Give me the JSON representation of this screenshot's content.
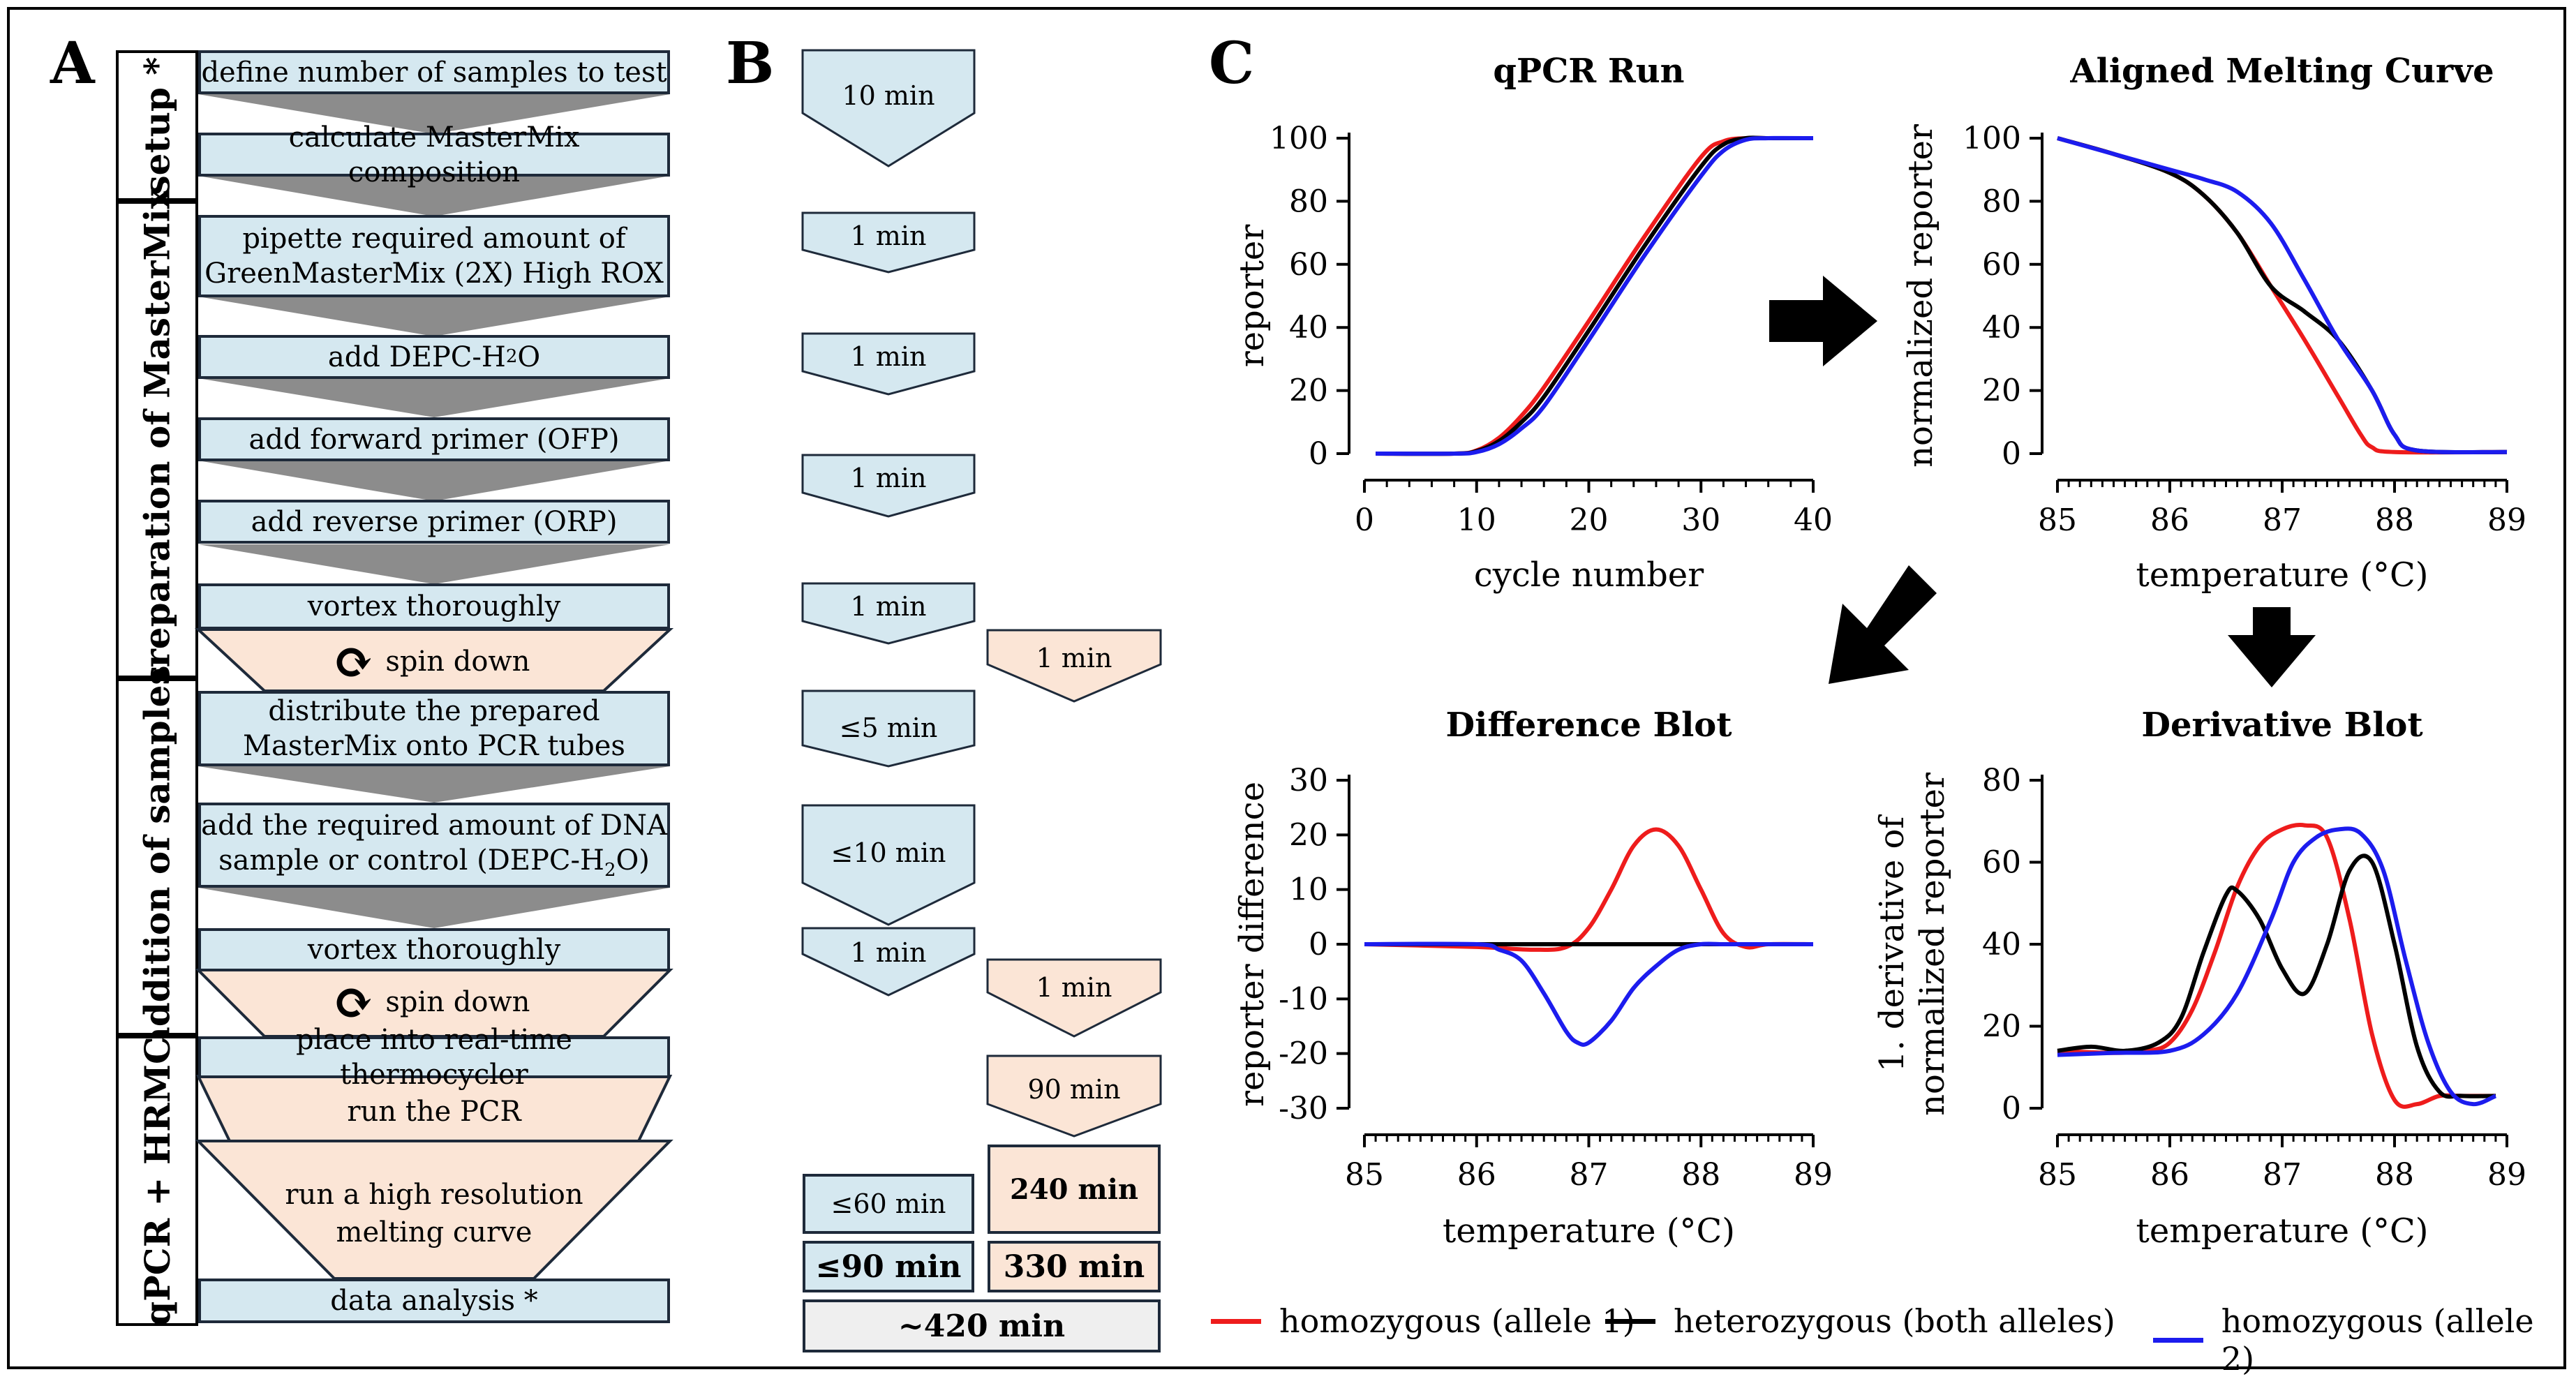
{
  "panels": {
    "a": "A",
    "b": "B",
    "c": "C"
  },
  "phases": [
    {
      "label": "setup *"
    },
    {
      "label": "preparation of MasterMix"
    },
    {
      "label": "addition of samples"
    },
    {
      "label": "qPCR + HRMC"
    }
  ],
  "steps": {
    "s1": "define number of samples to test",
    "s2": "calculate MasterMix composition",
    "s3a": "pipette required amount of",
    "s3b": "GreenMasterMix (2X) High ROX",
    "s4a": "add DEPC-H",
    "s4sub": "2",
    "s4b": "O",
    "s5": "add forward primer (OFP)",
    "s6": "add reverse primer (ORP)",
    "s7": "vortex thoroughly",
    "s8": "spin down",
    "s9a": "distribute the prepared",
    "s9b": "MasterMix onto PCR tubes",
    "s10a": "add the required amount of DNA",
    "s10b1": "sample or control (DEPC-H",
    "s10sub": "2",
    "s10b2": "O)",
    "s11": "vortex thoroughly",
    "s12": "spin down",
    "s13": "place into real-time thermocycler",
    "s14": "run the PCR",
    "s15a": "run a high resolution",
    "s15b": "melting curve",
    "s16": "data analysis *"
  },
  "times": {
    "t1": "10 min",
    "t2": "1 min",
    "t3": "1 min",
    "t4": "1 min",
    "t5": "1 min",
    "t6": "1 min",
    "t7": "≤5 min",
    "t8": "≤10 min",
    "t9": "1 min",
    "t10": "1 min",
    "t11": "90 min",
    "t12": "240 min",
    "t13": "≤60 min",
    "total_blue": "≤90 min",
    "total_orange": "330 min",
    "total_all": "~420 min"
  },
  "colors": {
    "allele1": "#ee1c1c",
    "hetero": "#000000",
    "allele2": "#1c1cee",
    "blue_box": "#d5e8f0",
    "orange_box": "#fbe5d6",
    "gray_box": "#efefef",
    "arrow": "#8c8c8c"
  },
  "legend": {
    "allele1": "homozygous (allele 1)",
    "hetero": "heterozygous (both alleles)",
    "allele2": "homozygous (allele 2)"
  },
  "chart_data": [
    {
      "type": "line",
      "title": "qPCR Run",
      "xlabel": "cycle number",
      "ylabel": "reporter",
      "xlim": [
        0,
        40
      ],
      "ylim": [
        0,
        100
      ],
      "xticks": [
        "0",
        "10",
        "20",
        "30",
        "40"
      ],
      "yticks": [
        "0",
        "20",
        "40",
        "60",
        "80",
        "100"
      ],
      "series": [
        {
          "name": "homozygous (allele 1)",
          "color": "#ee1c1c",
          "x": [
            1,
            8,
            10,
            12,
            14,
            16,
            20,
            25,
            30,
            32,
            34,
            36,
            40
          ],
          "y": [
            0,
            0,
            1,
            5,
            12,
            21,
            42,
            69,
            94,
            99,
            100,
            100,
            100
          ]
        },
        {
          "name": "heterozygous (both alleles)",
          "color": "#000000",
          "x": [
            1,
            8,
            10,
            12,
            14,
            16,
            20,
            25,
            30,
            32,
            34,
            36,
            40
          ],
          "y": [
            0,
            0,
            0.8,
            4,
            10,
            18,
            39,
            66,
            91,
            98,
            100,
            100,
            100
          ]
        },
        {
          "name": "homozygous (allele 2)",
          "color": "#1c1cee",
          "x": [
            1,
            8,
            10,
            12,
            14,
            16,
            20,
            25,
            30,
            32,
            34,
            36,
            40
          ],
          "y": [
            0,
            0,
            0.5,
            3,
            8,
            15,
            36,
            63,
            88,
            96,
            99.5,
            100,
            100
          ]
        }
      ]
    },
    {
      "type": "line",
      "title": "Aligned Melting Curve",
      "xlabel": "temperature (°C)",
      "ylabel": "normalized reporter",
      "xlim": [
        85,
        89
      ],
      "ylim": [
        0,
        100
      ],
      "xticks": [
        "85",
        "86",
        "87",
        "88",
        "89"
      ],
      "yticks": [
        "0",
        "20",
        "40",
        "60",
        "80",
        "100"
      ],
      "series": [
        {
          "name": "homozygous (allele 1)",
          "color": "#ee1c1c",
          "x": [
            85,
            85.5,
            86,
            86.3,
            86.6,
            86.9,
            87.2,
            87.5,
            87.7,
            87.8,
            88,
            89
          ],
          "y": [
            100,
            95,
            89,
            82,
            70,
            53,
            36,
            18,
            6,
            2,
            0.5,
            0.5
          ]
        },
        {
          "name": "heterozygous (both alleles)",
          "color": "#000000",
          "x": [
            85,
            85.5,
            86,
            86.3,
            86.6,
            86.9,
            87.2,
            87.5,
            87.8,
            88,
            88.2,
            89
          ],
          "y": [
            100,
            95,
            89,
            82,
            70,
            53,
            45,
            36,
            20,
            6,
            1,
            0.5
          ]
        },
        {
          "name": "homozygous (allele 2)",
          "color": "#1c1cee",
          "x": [
            85,
            85.5,
            86,
            86.3,
            86.6,
            86.9,
            87.2,
            87.5,
            87.8,
            88,
            88.2,
            89
          ],
          "y": [
            100,
            95,
            90,
            87,
            83,
            73,
            55,
            36,
            20,
            6,
            1,
            0.5
          ]
        }
      ]
    },
    {
      "type": "line",
      "title": "Difference Blot",
      "xlabel": "temperature (°C)",
      "ylabel": "reporter difference",
      "xlim": [
        85,
        89
      ],
      "ylim": [
        -30,
        30
      ],
      "xticks": [
        "85",
        "86",
        "87",
        "88",
        "89"
      ],
      "yticks": [
        "-30",
        "-20",
        "-10",
        "0",
        "10",
        "20",
        "30"
      ],
      "series": [
        {
          "name": "homozygous (allele 1)",
          "color": "#ee1c1c",
          "x": [
            85,
            86,
            86.5,
            86.8,
            87,
            87.2,
            87.4,
            87.6,
            87.8,
            88,
            88.2,
            88.4,
            88.6,
            89
          ],
          "y": [
            0,
            -0.5,
            -1,
            -0.5,
            3,
            10,
            18,
            21,
            18,
            10,
            2,
            -0.5,
            0,
            0
          ]
        },
        {
          "name": "heterozygous (both alleles)",
          "color": "#000000",
          "x": [
            85,
            89
          ],
          "y": [
            0,
            0
          ]
        },
        {
          "name": "homozygous (allele 2)",
          "color": "#1c1cee",
          "x": [
            85,
            86,
            86.2,
            86.4,
            86.6,
            86.8,
            86.9,
            87,
            87.2,
            87.4,
            87.6,
            87.8,
            88,
            88.2,
            88.4,
            89
          ],
          "y": [
            0,
            0,
            -1,
            -3,
            -9,
            -16,
            -18,
            -18,
            -14,
            -8,
            -4,
            -1,
            0,
            0,
            0,
            0
          ]
        }
      ]
    },
    {
      "type": "line",
      "title": "Derivative Blot",
      "xlabel": "temperature (°C)",
      "ylabel": "1. derivative of normalized reporter",
      "xlim": [
        85,
        89
      ],
      "ylim": [
        0,
        80
      ],
      "xticks": [
        "85",
        "86",
        "87",
        "88",
        "89"
      ],
      "yticks": [
        "0",
        "20",
        "40",
        "60",
        "80"
      ],
      "series": [
        {
          "name": "homozygous (allele 1)",
          "color": "#ee1c1c",
          "x": [
            85,
            85.5,
            85.8,
            86,
            86.2,
            86.4,
            86.6,
            86.8,
            87,
            87.2,
            87.4,
            87.6,
            87.8,
            88,
            88.2,
            88.4,
            88.6,
            88.9
          ],
          "y": [
            14,
            13.5,
            14,
            16,
            24,
            38,
            54,
            64,
            68,
            69,
            66,
            46,
            18,
            2,
            1,
            3,
            3,
            3
          ]
        },
        {
          "name": "heterozygous (both alleles)",
          "color": "#000000",
          "x": [
            85,
            85.3,
            85.6,
            85.9,
            86.1,
            86.3,
            86.5,
            86.6,
            86.8,
            87,
            87.2,
            87.4,
            87.6,
            87.8,
            88,
            88.2,
            88.4,
            88.6,
            88.9
          ],
          "y": [
            14,
            15,
            14,
            16,
            22,
            38,
            52,
            53,
            46,
            34,
            28,
            40,
            58,
            60,
            40,
            15,
            4,
            3,
            3
          ]
        },
        {
          "name": "homozygous (allele 2)",
          "color": "#1c1cee",
          "x": [
            85,
            85.5,
            86,
            86.3,
            86.6,
            86.9,
            87.1,
            87.3,
            87.5,
            87.7,
            87.9,
            88.1,
            88.3,
            88.5,
            88.7,
            88.9
          ],
          "y": [
            13,
            13.5,
            14,
            18,
            28,
            46,
            60,
            66,
            68,
            67,
            58,
            36,
            16,
            4,
            1,
            3
          ]
        }
      ]
    }
  ]
}
